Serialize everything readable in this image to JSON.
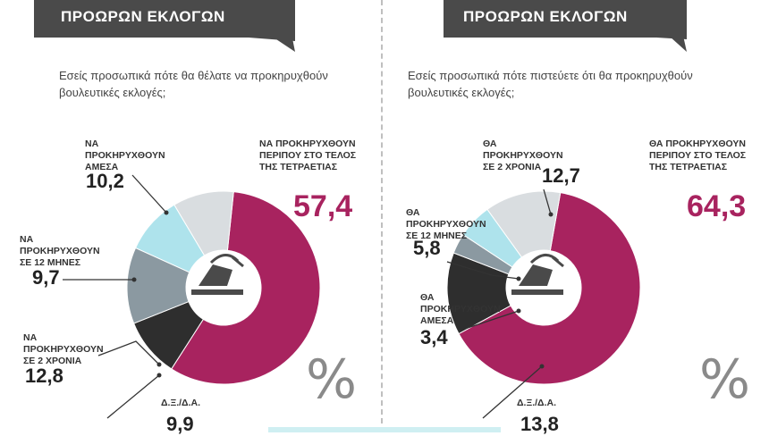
{
  "chart_data": [
    {
      "type": "pie",
      "title": "ΠΡΟΩΡΩΝ ΕΚΛΟΓΩΝ",
      "question": "Εσείς προσωπικά πότε θα θέλατε να προκηρυχθούν βουλευτικές εκλογές;",
      "unit": "%",
      "slices": [
        {
          "label": "ΝΑ ΠΡΟΚΗΡΥΧΘΟΥΝ ΠΕΡΙΠΟΥ ΣΤΟ ΤΕΛΟΣ ΤΗΣ ΤΕΤΡΑΕΤΙΑΣ",
          "value": 57.4,
          "display": "57,4",
          "color": "#a8235f"
        },
        {
          "label": "Δ.Ξ./Δ.Α.",
          "value": 9.9,
          "display": "9,9",
          "color": "#2e2e2e"
        },
        {
          "label": "ΝΑ ΠΡΟΚΗΡΥΧΘΟΥΝ ΣΕ 2 ΧΡΟΝΙΑ",
          "value": 12.8,
          "display": "12,8",
          "color": "#8b99a1"
        },
        {
          "label": "ΝΑ ΠΡΟΚΗΡΥΧΘΟΥΝ ΣΕ 12 ΜΗΝΕΣ",
          "value": 9.7,
          "display": "9,7",
          "color": "#aee3ec"
        },
        {
          "label": "ΝΑ ΠΡΟΚΗΡΥΧΘΟΥΝ ΑΜΕΣΑ",
          "value": 10.2,
          "display": "10,2",
          "color": "#d9dde0"
        }
      ]
    },
    {
      "type": "pie",
      "title": "ΠΡΟΩΡΩΝ ΕΚΛΟΓΩΝ",
      "question": "Εσείς προσωπικά πότε πιστεύετε ότι θα προκηρυχθούν βουλευτικές εκλογές;",
      "unit": "%",
      "slices": [
        {
          "label": "ΘΑ ΠΡΟΚΗΡΥΧΘΟΥΝ ΠΕΡΙΠΟΥ ΣΤΟ ΤΕΛΟΣ ΤΗΣ ΤΕΤΡΑΕΤΙΑΣ",
          "value": 64.3,
          "display": "64,3",
          "color": "#a8235f"
        },
        {
          "label": "Δ.Ξ./Δ.Α.",
          "value": 13.8,
          "display": "13,8",
          "color": "#2e2e2e"
        },
        {
          "label": "ΘΑ ΠΡΟΚΗΡΥΧΘΟΥΝ ΑΜΕΣΑ",
          "value": 3.4,
          "display": "3,4",
          "color": "#8b99a1"
        },
        {
          "label": "ΘΑ ΠΡΟΚΗΡΥΧΘΟΥΝ ΣΕ 12 ΜΗΝΕΣ",
          "value": 5.8,
          "display": "5,8",
          "color": "#aee3ec"
        },
        {
          "label": "ΘΑ ΠΡΟΚΗΡΥΧΘΟΥΝ ΣΕ 2 ΧΡΟΝΙΑ",
          "value": 12.7,
          "display": "12,7",
          "color": "#d9dde0"
        }
      ]
    }
  ],
  "labels": {
    "left": {
      "end": "ΝΑ ΠΡΟΚΗΡΥΧΘΟΥΝ ΠΕΡΙΠΟΥ ΣΤΟ ΤΕΛΟΣ ΤΗΣ ΤΕΤΡΑΕΤΙΑΣ",
      "immediate": "ΝΑ ΠΡΟΚΗΡΥΧΘΟΥΝ ΑΜΕΣΑ",
      "months12": "ΝΑ ΠΡΟΚΗΡΥΧΘΟΥΝ ΣΕ 12 ΜΗΝΕΣ",
      "years2": "ΝΑ ΠΡΟΚΗΡΥΧΘΟΥΝ ΣΕ 2 ΧΡΟΝΙΑ",
      "dk": "Δ.Ξ./Δ.Α."
    },
    "right": {
      "end": "ΘΑ ΠΡΟΚΗΡΥΧΘΟΥΝ ΠΕΡΙΠΟΥ ΣΤΟ ΤΕΛΟΣ ΤΗΣ ΤΕΤΡΑΕΤΙΑΣ",
      "years2": "ΘΑ ΠΡΟΚΗΡΥΧΘΟΥΝ ΣΕ 2 ΧΡΟΝΙΑ",
      "months12": "ΘΑ ΠΡΟΚΗΡΥΧΘΟΥΝ ΣΕ 12 ΜΗΝΕΣ",
      "immediate": "ΘΑ ΠΡΟΚΗΡΥΧΘΟΥΝ ΑΜΕΣΑ",
      "dk": "Δ.Ξ./Δ.Α."
    }
  },
  "percent_sign": "%",
  "icon": "ballot-box-icon"
}
